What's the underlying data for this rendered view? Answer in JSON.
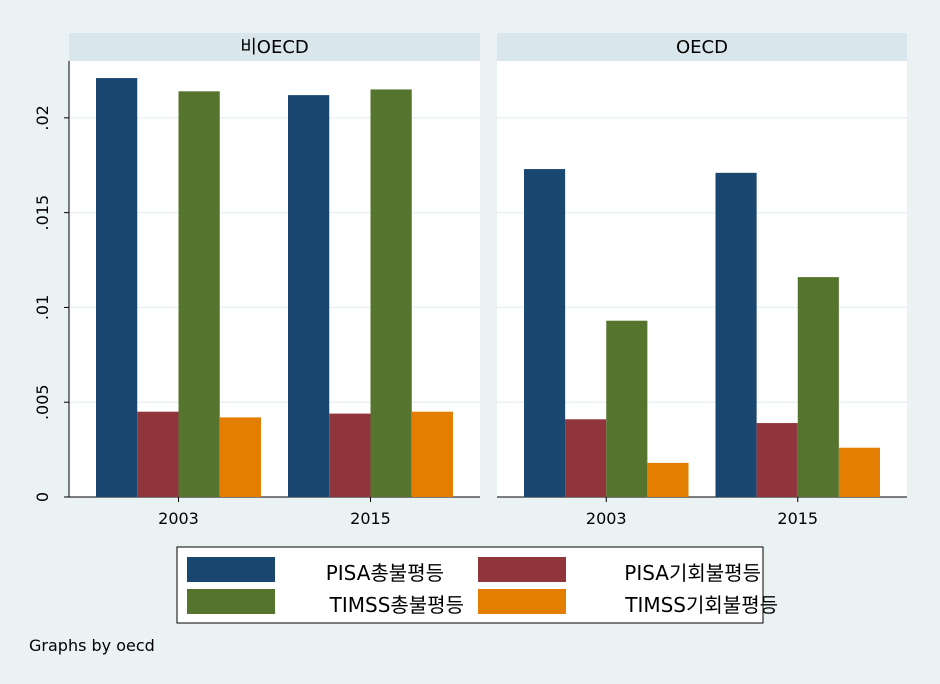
{
  "chart_data": {
    "type": "bar",
    "y_ticks": [
      0,
      0.005,
      0.01,
      0.015,
      0.02
    ],
    "y_tick_labels": [
      "0",
      ".005",
      ".01",
      ".015",
      ".02"
    ],
    "ylim": [
      0,
      0.023
    ],
    "grid": true,
    "note": "Graphs by oecd",
    "legend": {
      "position": "bottom",
      "entries": [
        {
          "label": "PISA총불평등",
          "color": "#1a476f"
        },
        {
          "label": "PISA기회불평등",
          "color": "#90353b"
        },
        {
          "label": "TIMSS총불평등",
          "color": "#55752f"
        },
        {
          "label": "TIMSS기회불평등",
          "color": "#e37e00"
        }
      ]
    },
    "panels": [
      {
        "title": "비OECD",
        "categories": [
          "2003",
          "2015"
        ],
        "series": [
          {
            "name": "PISA총불평등",
            "values": [
              0.0221,
              0.0212
            ]
          },
          {
            "name": "PISA기회불평등",
            "values": [
              0.0045,
              0.0044
            ]
          },
          {
            "name": "TIMSS총불평등",
            "values": [
              0.0214,
              0.0215
            ]
          },
          {
            "name": "TIMSS기회불평등",
            "values": [
              0.0042,
              0.0045
            ]
          }
        ]
      },
      {
        "title": "OECD",
        "categories": [
          "2003",
          "2015"
        ],
        "series": [
          {
            "name": "PISA총불평등",
            "values": [
              0.0173,
              0.0171
            ]
          },
          {
            "name": "PISA기회불평등",
            "values": [
              0.0041,
              0.0039
            ]
          },
          {
            "name": "TIMSS총불평등",
            "values": [
              0.0093,
              0.0116
            ]
          },
          {
            "name": "TIMSS기회불평등",
            "values": [
              0.0018,
              0.0026
            ]
          }
        ]
      }
    ]
  }
}
